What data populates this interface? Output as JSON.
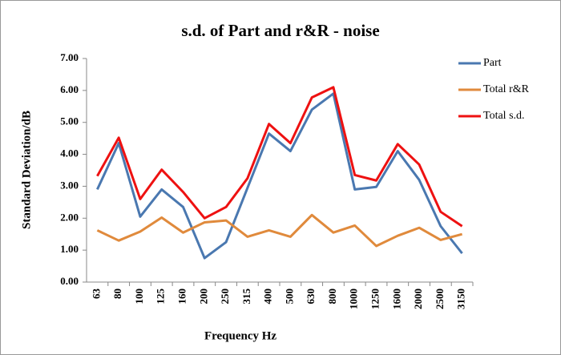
{
  "chart_data": {
    "type": "line",
    "title": "s.d. of Part and r&R - noise",
    "x_label": "Frequency Hz",
    "y_label": "Standard Deviation/dB",
    "categories": [
      "63",
      "80",
      "100",
      "125",
      "160",
      "200",
      "250",
      "315",
      "400",
      "500",
      "630",
      "800",
      "1000",
      "1250",
      "1600",
      "2000",
      "2500",
      "3150"
    ],
    "series": [
      {
        "name": "Part",
        "color": "#4a78b0",
        "values": [
          2.9,
          4.35,
          2.05,
          2.9,
          2.35,
          0.75,
          1.25,
          2.95,
          4.65,
          4.1,
          5.4,
          5.9,
          2.9,
          2.98,
          4.1,
          3.2,
          1.75,
          0.9
        ]
      },
      {
        "name": "Total r&R",
        "color": "#e08a3c",
        "values": [
          1.62,
          1.3,
          1.58,
          2.02,
          1.55,
          1.87,
          1.93,
          1.42,
          1.62,
          1.42,
          2.1,
          1.55,
          1.77,
          1.13,
          1.45,
          1.7,
          1.32,
          1.5
        ]
      },
      {
        "name": "Total s.d.",
        "color": "#ee1111",
        "values": [
          3.32,
          4.52,
          2.6,
          3.52,
          2.82,
          2.0,
          2.35,
          3.25,
          4.95,
          4.35,
          5.78,
          6.1,
          3.35,
          3.18,
          4.32,
          3.68,
          2.2,
          1.75
        ]
      }
    ],
    "ylim": [
      0,
      7
    ],
    "yticks": [
      {
        "value": 0,
        "label": "0.00"
      },
      {
        "value": 1,
        "label": "1.00"
      },
      {
        "value": 2,
        "label": "2.00"
      },
      {
        "value": 3,
        "label": "3.00"
      },
      {
        "value": 4,
        "label": "4.00"
      },
      {
        "value": 5,
        "label": "5.00"
      },
      {
        "value": 6,
        "label": "6.00"
      },
      {
        "value": 7,
        "label": "7.00"
      }
    ],
    "grid": false,
    "legend": "right"
  }
}
